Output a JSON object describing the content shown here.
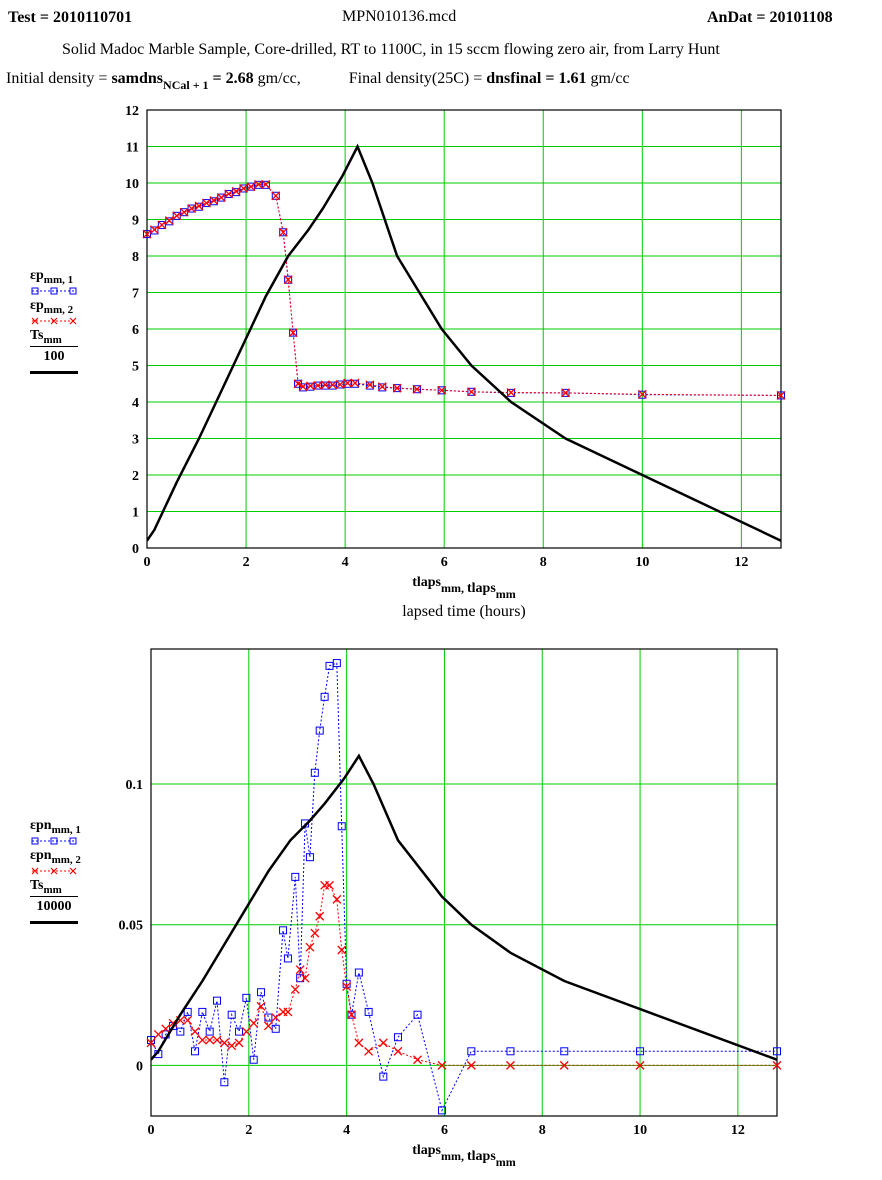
{
  "header": {
    "test_label": "Test = 2010110701",
    "file_name": "MPN010136.mcd",
    "andat_label": "AnDat = 20101108",
    "description": "Solid Madoc Marble Sample, Core-drilled, RT to 1100C, in 15 sccm flowing zero air, from Larry Hunt",
    "initial_density_prefix": "Initial density =",
    "initial_density_var": "samdns",
    "initial_density_sub": "NCal + 1",
    "initial_density_value": "= 2.68",
    "initial_density_unit": "gm/cc,",
    "final_density_prefix": "Final density(25C) =",
    "final_density_var": "dnsfinal",
    "final_density_value": "= 1.61",
    "final_density_unit": "gm/cc"
  },
  "legend_top": {
    "s1_label": "εp",
    "s1_sub": "mm, 1",
    "s2_label": "εp",
    "s2_sub": "mm, 2",
    "ts_label": "Ts",
    "ts_sub": "mm",
    "ts_div": "100"
  },
  "legend_bottom": {
    "s1_label": "εpn",
    "s1_sub": "mm, 1",
    "s2_label": "εpn",
    "s2_sub": "mm, 2",
    "ts_label": "Ts",
    "ts_sub": "mm",
    "ts_div": "10000"
  },
  "colors": {
    "grid": "#00cc00",
    "series1": "#0000ff",
    "series2": "#ff0000",
    "ts": "#000000"
  },
  "chart_data": [
    {
      "type": "line",
      "xlabel": "tlaps_mm, tlaps_mm",
      "xlabel2": "lapsed time (hours)",
      "xlim": [
        0,
        12.8
      ],
      "ylim": [
        0,
        12
      ],
      "xticks": [
        0,
        2,
        4,
        6,
        8,
        10,
        12
      ],
      "yticks": [
        0,
        1,
        2,
        3,
        4,
        5,
        6,
        7,
        8,
        9,
        10,
        11,
        12
      ],
      "grid": true,
      "series": [
        {
          "name": "εp mm,1",
          "marker": "square",
          "x": [
            0,
            0.15,
            0.3,
            0.45,
            0.6,
            0.75,
            0.9,
            1.05,
            1.2,
            1.35,
            1.5,
            1.65,
            1.8,
            1.95,
            2.1,
            2.25,
            2.4,
            2.6,
            2.75,
            2.85,
            2.95,
            3.05,
            3.15,
            3.3,
            3.45,
            3.6,
            3.75,
            3.9,
            4.05,
            4.2,
            4.5,
            4.75,
            5.05,
            5.45,
            5.95,
            6.55,
            7.35,
            8.45,
            10.0,
            12.8
          ],
          "y": [
            8.6,
            8.7,
            8.85,
            8.95,
            9.1,
            9.2,
            9.3,
            9.35,
            9.45,
            9.5,
            9.6,
            9.7,
            9.75,
            9.85,
            9.9,
            9.95,
            9.95,
            9.65,
            8.65,
            7.35,
            5.9,
            4.5,
            4.4,
            4.42,
            4.45,
            4.45,
            4.45,
            4.48,
            4.5,
            4.5,
            4.45,
            4.4,
            4.38,
            4.35,
            4.32,
            4.28,
            4.25,
            4.25,
            4.2,
            4.18
          ]
        },
        {
          "name": "εp mm,2",
          "marker": "x",
          "x": [
            0,
            0.15,
            0.3,
            0.45,
            0.6,
            0.75,
            0.9,
            1.05,
            1.2,
            1.35,
            1.5,
            1.65,
            1.8,
            1.95,
            2.1,
            2.25,
            2.4,
            2.6,
            2.75,
            2.85,
            2.95,
            3.05,
            3.15,
            3.3,
            3.45,
            3.6,
            3.75,
            3.9,
            4.05,
            4.2,
            4.5,
            4.75,
            5.05,
            5.45,
            5.95,
            6.55,
            7.35,
            8.45,
            10.0,
            12.8
          ],
          "y": [
            8.6,
            8.72,
            8.85,
            8.97,
            9.1,
            9.2,
            9.3,
            9.37,
            9.45,
            9.52,
            9.6,
            9.7,
            9.77,
            9.85,
            9.9,
            9.96,
            9.96,
            9.65,
            8.65,
            7.35,
            5.9,
            4.5,
            4.42,
            4.44,
            4.45,
            4.47,
            4.47,
            4.48,
            4.52,
            4.52,
            4.47,
            4.42,
            4.38,
            4.35,
            4.32,
            4.28,
            4.26,
            4.25,
            4.21,
            4.18
          ]
        },
        {
          "name": "Ts mm / 100",
          "marker": "none",
          "x": [
            0,
            0.15,
            0.6,
            1.05,
            1.5,
            1.95,
            2.4,
            2.85,
            3.25,
            3.55,
            3.95,
            4.25,
            4.55,
            5.05,
            5.95,
            6.55,
            7.35,
            8.45,
            10.0,
            12.8
          ],
          "y": [
            0.2,
            0.5,
            1.8,
            3.0,
            4.3,
            5.6,
            6.9,
            8.0,
            8.7,
            9.3,
            10.2,
            11.0,
            10.0,
            8.0,
            6.0,
            5.0,
            4.0,
            3.0,
            2.0,
            0.2
          ]
        }
      ]
    },
    {
      "type": "line",
      "xlabel": "tlaps_mm, tlaps_mm",
      "xlim": [
        0,
        12.8
      ],
      "ylim": [
        -0.018,
        0.148
      ],
      "xticks": [
        0,
        2,
        4,
        6,
        8,
        10,
        12
      ],
      "yticks": [
        0,
        0.05,
        0.1
      ],
      "ytick_labels": [
        "0",
        "0.05",
        "0.1"
      ],
      "grid": true,
      "series": [
        {
          "name": "εpn mm,1",
          "marker": "square",
          "x": [
            0,
            0.15,
            0.3,
            0.45,
            0.6,
            0.75,
            0.9,
            1.05,
            1.2,
            1.35,
            1.5,
            1.65,
            1.8,
            1.95,
            2.1,
            2.25,
            2.4,
            2.55,
            2.7,
            2.8,
            2.95,
            3.05,
            3.15,
            3.25,
            3.35,
            3.45,
            3.55,
            3.65,
            3.8,
            3.9,
            4.0,
            4.1,
            4.25,
            4.45,
            4.75,
            5.05,
            5.45,
            5.95,
            6.55,
            7.35,
            8.45,
            10.0,
            12.8
          ],
          "y": [
            0.009,
            0.004,
            0.011,
            0.014,
            0.012,
            0.019,
            0.005,
            0.019,
            0.012,
            0.023,
            -0.006,
            0.018,
            0.012,
            0.024,
            0.002,
            0.026,
            0.017,
            0.013,
            0.048,
            0.038,
            0.067,
            0.031,
            0.086,
            0.074,
            0.104,
            0.119,
            0.131,
            0.142,
            0.143,
            0.085,
            0.029,
            0.018,
            0.033,
            0.019,
            -0.004,
            0.01,
            0.018,
            -0.016,
            0.005,
            0.005,
            0.005,
            0.005,
            0.005
          ]
        },
        {
          "name": "εpn mm,2",
          "marker": "x",
          "x": [
            0,
            0.15,
            0.3,
            0.45,
            0.6,
            0.75,
            0.9,
            1.05,
            1.2,
            1.35,
            1.5,
            1.65,
            1.8,
            1.95,
            2.1,
            2.25,
            2.4,
            2.55,
            2.7,
            2.8,
            2.95,
            3.05,
            3.15,
            3.25,
            3.35,
            3.45,
            3.55,
            3.65,
            3.8,
            3.9,
            4.0,
            4.1,
            4.25,
            4.45,
            4.75,
            5.05,
            5.45,
            5.95,
            6.55,
            7.35,
            8.45,
            10.0,
            12.8
          ],
          "y": [
            0.008,
            0.011,
            0.013,
            0.015,
            0.016,
            0.016,
            0.012,
            0.009,
            0.009,
            0.009,
            0.008,
            0.007,
            0.008,
            0.012,
            0.015,
            0.021,
            0.014,
            0.017,
            0.019,
            0.019,
            0.027,
            0.034,
            0.031,
            0.042,
            0.047,
            0.053,
            0.064,
            0.064,
            0.059,
            0.041,
            0.028,
            0.018,
            0.008,
            0.005,
            0.008,
            0.005,
            0.002,
            0.0,
            0.0,
            0.0,
            0.0,
            0.0,
            0.0
          ]
        },
        {
          "name": "Ts mm / 10000",
          "marker": "none",
          "x": [
            0,
            0.15,
            0.6,
            1.05,
            1.5,
            1.95,
            2.4,
            2.85,
            3.25,
            3.55,
            3.95,
            4.25,
            4.55,
            5.05,
            5.95,
            6.55,
            7.35,
            8.45,
            10.0,
            12.8
          ],
          "y": [
            0.002,
            0.005,
            0.018,
            0.03,
            0.043,
            0.056,
            0.069,
            0.08,
            0.087,
            0.093,
            0.102,
            0.11,
            0.1,
            0.08,
            0.06,
            0.05,
            0.04,
            0.03,
            0.02,
            0.002
          ]
        }
      ]
    }
  ]
}
